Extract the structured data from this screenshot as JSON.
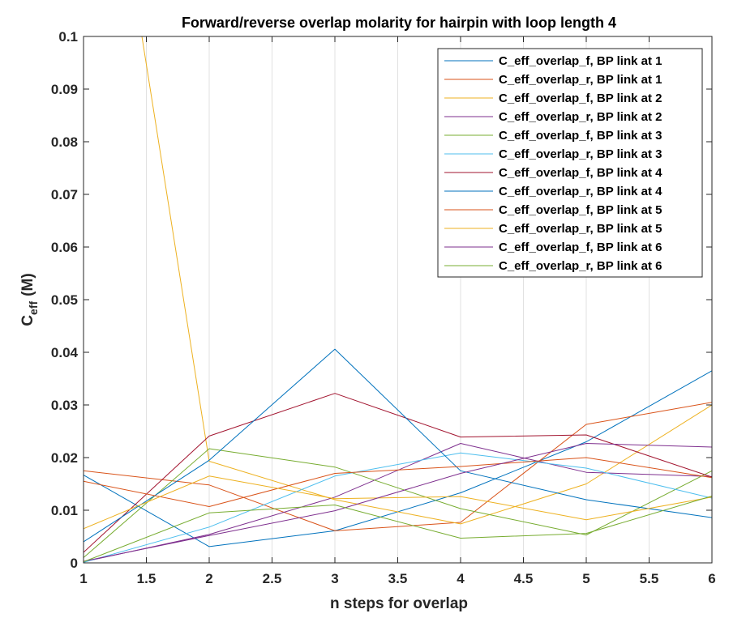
{
  "chart_data": {
    "type": "line",
    "title": "Forward/reverse overlap molarity for hairpin with loop length 4",
    "xlabel": "n steps for overlap",
    "ylabel_main": "C",
    "ylabel_sub": "eff",
    "ylabel_unit": "(M)",
    "xlim": [
      1,
      6
    ],
    "ylim": [
      0,
      0.1
    ],
    "xticks": [
      1,
      1.5,
      2,
      2.5,
      3,
      3.5,
      4,
      4.5,
      5,
      5.5,
      6
    ],
    "xtick_labels": [
      "1",
      "1.5",
      "2",
      "2.5",
      "3",
      "3.5",
      "4",
      "4.5",
      "5",
      "5.5",
      "6"
    ],
    "yticks": [
      0,
      0.01,
      0.02,
      0.03,
      0.04,
      0.05,
      0.06,
      0.07,
      0.08,
      0.09,
      0.1
    ],
    "ytick_labels": [
      "0",
      "0.01",
      "0.02",
      "0.03",
      "0.04",
      "0.05",
      "0.06",
      "0.07",
      "0.08",
      "0.09",
      "0.1"
    ],
    "grid": "vertical",
    "legend_position": "top-right",
    "x": [
      1,
      2,
      3,
      4,
      5,
      6
    ],
    "series": [
      {
        "name": "C_eff_overlap_f, BP link at 1",
        "color": "#0072BD",
        "values": [
          0.0167,
          0.0031,
          0.0061,
          0.0133,
          0.023,
          0.0365
        ]
      },
      {
        "name": "C_eff_overlap_r, BP link at 1",
        "color": "#D95319",
        "values": [
          0.0175,
          0.0148,
          0.0061,
          0.0077,
          0.0263,
          0.0305
        ]
      },
      {
        "name": "C_eff_overlap_f, BP link at 2",
        "color": "#EDB120",
        "values": [
          0.17,
          0.0193,
          0.012,
          0.0074,
          0.015,
          0.03
        ]
      },
      {
        "name": "C_eff_overlap_r, BP link at 2",
        "color": "#7E2F8E",
        "values": [
          0.0002,
          0.0054,
          0.0125,
          0.0227,
          0.0172,
          0.0164
        ]
      },
      {
        "name": "C_eff_overlap_f, BP link at 3",
        "color": "#77AC30",
        "values": [
          0.001,
          0.0217,
          0.0182,
          0.0103,
          0.0053,
          0.0175
        ]
      },
      {
        "name": "C_eff_overlap_r, BP link at 3",
        "color": "#4DBEEE",
        "values": [
          0.0001,
          0.0068,
          0.0165,
          0.0209,
          0.018,
          0.0123
        ]
      },
      {
        "name": "C_eff_overlap_f, BP link at 4",
        "color": "#A2142F",
        "values": [
          0.002,
          0.0241,
          0.0322,
          0.0239,
          0.0243,
          0.0163
        ]
      },
      {
        "name": "C_eff_overlap_r, BP link at 4",
        "color": "#0072BD",
        "values": [
          0.004,
          0.0195,
          0.0406,
          0.0175,
          0.012,
          0.0086
        ]
      },
      {
        "name": "C_eff_overlap_f, BP link at 5",
        "color": "#D95319",
        "values": [
          0.0155,
          0.0107,
          0.017,
          0.0183,
          0.02,
          0.0162
        ]
      },
      {
        "name": "C_eff_overlap_r, BP link at 5",
        "color": "#EDB120",
        "values": [
          0.0065,
          0.0165,
          0.0122,
          0.0126,
          0.0082,
          0.0125
        ]
      },
      {
        "name": "C_eff_overlap_f, BP link at 6",
        "color": "#7E2F8E",
        "values": [
          0.0003,
          0.0052,
          0.0099,
          0.017,
          0.0227,
          0.022
        ]
      },
      {
        "name": "C_eff_overlap_r, BP link at 6",
        "color": "#77AC30",
        "values": [
          0.0002,
          0.0095,
          0.011,
          0.0047,
          0.0056,
          0.0127
        ]
      }
    ]
  }
}
